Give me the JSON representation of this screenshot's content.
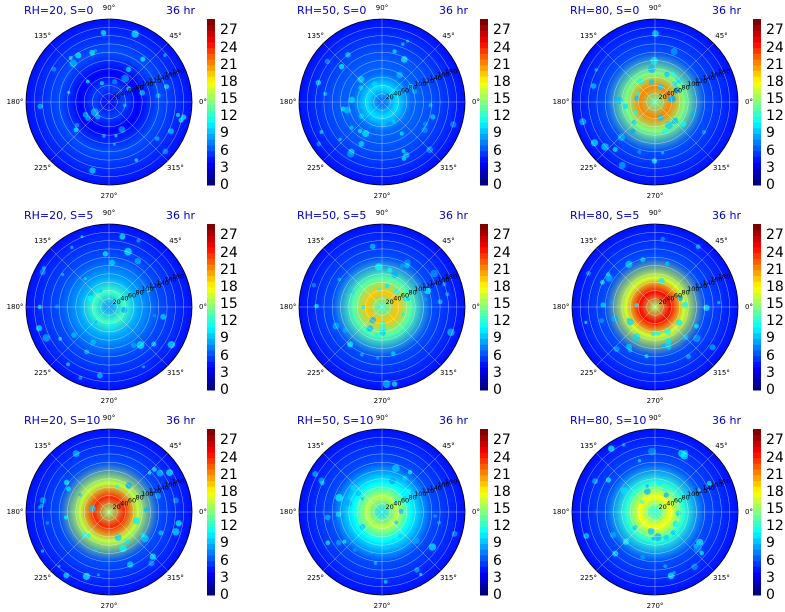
{
  "figure": {
    "time_label": "36 hr",
    "angle_labels": [
      "90°",
      "45°",
      "0°",
      "315°",
      "270°",
      "225°",
      "180°",
      "135°"
    ],
    "radial_labels": [
      "20",
      "40",
      "60",
      "80",
      "100",
      "120",
      "140",
      "160",
      "180"
    ]
  },
  "chart_data": [
    {
      "type": "heatmap",
      "title": "RH=20, S=0",
      "subtitle": "36 hr",
      "colorbar_ticks": [
        0,
        3,
        6,
        9,
        12,
        15,
        18,
        21,
        24,
        27
      ],
      "clim": [
        0,
        29
      ],
      "colormap": "jet",
      "projection": "polar",
      "peak_value": 6
    },
    {
      "type": "heatmap",
      "title": "RH=50, S=0",
      "subtitle": "36 hr",
      "colorbar_ticks": [
        0,
        3,
        6,
        9,
        12,
        15,
        18,
        21,
        24,
        27
      ],
      "clim": [
        0,
        29
      ],
      "colormap": "jet",
      "projection": "polar",
      "peak_value": 11
    },
    {
      "type": "heatmap",
      "title": "RH=80, S=0",
      "subtitle": "36 hr",
      "colorbar_ticks": [
        0,
        3,
        6,
        9,
        12,
        15,
        18,
        21,
        24,
        27
      ],
      "clim": [
        0,
        29
      ],
      "colormap": "jet",
      "projection": "polar",
      "peak_value": 24
    },
    {
      "type": "heatmap",
      "title": "RH=20, S=5",
      "subtitle": "36 hr",
      "colorbar_ticks": [
        0,
        3,
        6,
        9,
        12,
        15,
        18,
        21,
        24,
        27
      ],
      "clim": [
        0,
        29
      ],
      "colormap": "jet",
      "projection": "polar",
      "peak_value": 14
    },
    {
      "type": "heatmap",
      "title": "RH=50, S=5",
      "subtitle": "36 hr",
      "colorbar_ticks": [
        0,
        3,
        6,
        9,
        12,
        15,
        18,
        21,
        24,
        27
      ],
      "clim": [
        0,
        29
      ],
      "colormap": "jet",
      "projection": "polar",
      "peak_value": 22
    },
    {
      "type": "heatmap",
      "title": "RH=80, S=5",
      "subtitle": "36 hr",
      "colorbar_ticks": [
        0,
        3,
        6,
        9,
        12,
        15,
        18,
        21,
        24,
        27
      ],
      "clim": [
        0,
        29
      ],
      "colormap": "jet",
      "projection": "polar",
      "peak_value": 28
    },
    {
      "type": "heatmap",
      "title": "RH=20, S=10",
      "subtitle": "36 hr",
      "colorbar_ticks": [
        0,
        3,
        6,
        9,
        12,
        15,
        18,
        21,
        24,
        27
      ],
      "clim": [
        0,
        29
      ],
      "colormap": "jet",
      "projection": "polar",
      "peak_value": 27
    },
    {
      "type": "heatmap",
      "title": "RH=50, S=10",
      "subtitle": "36 hr",
      "colorbar_ticks": [
        0,
        3,
        6,
        9,
        12,
        15,
        18,
        21,
        24,
        27
      ],
      "clim": [
        0,
        29
      ],
      "colormap": "jet",
      "projection": "polar",
      "peak_value": 18
    },
    {
      "type": "heatmap",
      "title": "RH=80, S=10",
      "subtitle": "36 hr",
      "colorbar_ticks": [
        0,
        3,
        6,
        9,
        12,
        15,
        18,
        21,
        24,
        27
      ],
      "clim": [
        0,
        29
      ],
      "colormap": "jet",
      "projection": "polar",
      "peak_value": 20
    }
  ]
}
